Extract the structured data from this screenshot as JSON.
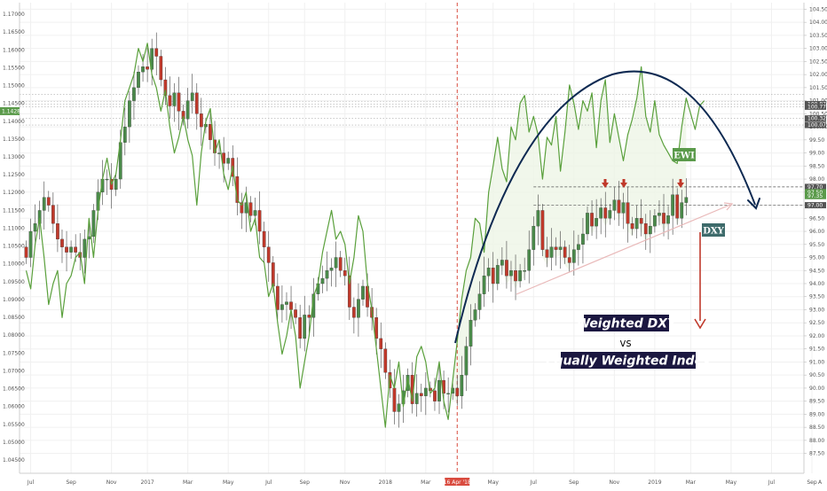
{
  "chart_data": {
    "type": "line",
    "title": "",
    "xlabel": "",
    "ylabel": "",
    "left_axis": {
      "ticks": [
        "1.04500",
        "1.05000",
        "1.05500",
        "1.06000",
        "1.06500",
        "1.07000",
        "1.07500",
        "1.08000",
        "1.08500",
        "1.09000",
        "1.09500",
        "1.10000",
        "1.10500",
        "1.11000",
        "1.11500",
        "1.12000",
        "1.12500",
        "1.13000",
        "1.13500",
        "1.14000",
        "1.14500",
        "1.15000",
        "1.15500",
        "1.16000",
        "1.16500",
        "1.17000"
      ],
      "ylim": [
        1.045,
        1.1725
      ],
      "current_label": "1.14282",
      "current_value": 1.14282,
      "reference_levels": [
        1.1455,
        1.1475
      ]
    },
    "right_axis": {
      "ticks": [
        "87.50",
        "88.00",
        "88.50",
        "89.00",
        "89.50",
        "90.00",
        "90.50",
        "91.00",
        "91.50",
        "92.00",
        "92.50",
        "93.00",
        "93.50",
        "94.00",
        "94.50",
        "95.00",
        "95.50",
        "96.00",
        "96.50",
        "97.00",
        "97.50",
        "98.00",
        "98.50",
        "99.00",
        "99.50",
        "100.00",
        "100.50",
        "101.00",
        "101.50",
        "102.00",
        "102.50",
        "103.00",
        "103.50",
        "104.00",
        "104.50"
      ],
      "ylim": [
        87.25,
        104.65
      ],
      "price_labels": [
        {
          "text": "100.87",
          "value": 100.87,
          "color": "#555555"
        },
        {
          "text": "100.77",
          "value": 100.77,
          "color": "#555555"
        },
        {
          "text": "100.32",
          "value": 100.32,
          "color": "#555555"
        },
        {
          "text": "100.07",
          "value": 100.07,
          "color": "#555555"
        },
        {
          "text": "97.70",
          "value": 97.7,
          "color": "#555555"
        },
        {
          "text": "97.50",
          "value": 97.5,
          "color": "#5a9a4a"
        },
        {
          "text": "97.35",
          "value": 97.35,
          "color": "#5a9a4a"
        },
        {
          "text": "97.00",
          "value": 97.0,
          "color": "#555555"
        }
      ]
    },
    "x_axis": {
      "labels": [
        {
          "text": "Jul",
          "week": 1
        },
        {
          "text": "Sep",
          "week": 10
        },
        {
          "text": "Nov",
          "week": 19
        },
        {
          "text": "2017",
          "week": 27
        },
        {
          "text": "Mar",
          "week": 36
        },
        {
          "text": "May",
          "week": 45
        },
        {
          "text": "Jul",
          "week": 54
        },
        {
          "text": "Sep",
          "week": 62
        },
        {
          "text": "Nov",
          "week": 71
        },
        {
          "text": "2018",
          "week": 80
        },
        {
          "text": "Mar",
          "week": 89
        },
        {
          "text": "May",
          "week": 104
        },
        {
          "text": "Jul",
          "week": 113
        },
        {
          "text": "Sep",
          "week": 122
        },
        {
          "text": "Nov",
          "week": 131
        },
        {
          "text": "2019",
          "week": 140
        },
        {
          "text": "Mar",
          "week": 148
        },
        {
          "text": "May",
          "week": 157
        },
        {
          "text": "Jul",
          "week": 166
        },
        {
          "text": "Sep",
          "week": 175
        }
      ],
      "marker_label": "16 Apr '18",
      "marker_week": 96,
      "end_mark": "A"
    },
    "dxy_weekly_close": [
      95.0,
      96.0,
      96.3,
      96.8,
      97.3,
      97.0,
      96.3,
      95.7,
      95.4,
      95.2,
      95.4,
      95.2,
      95.0,
      95.7,
      95.8,
      96.8,
      97.5,
      98.0,
      98.0,
      97.6,
      98.0,
      99.4,
      100.0,
      101.0,
      101.5,
      102.1,
      102.3,
      102.2,
      103.0,
      102.7,
      101.8,
      101.2,
      100.8,
      101.3,
      100.6,
      100.3,
      101.0,
      101.3,
      100.5,
      100.0,
      100.1,
      99.5,
      99.0,
      99.0,
      98.6,
      98.8,
      98.1,
      97.1,
      96.7,
      97.1,
      96.6,
      96.8,
      96.0,
      95.4,
      94.8,
      93.9,
      93.0,
      93.2,
      93.3,
      93.0,
      92.7,
      91.9,
      92.8,
      92.7,
      93.6,
      94.0,
      94.2,
      94.5,
      94.6,
      95.0,
      94.5,
      94.3,
      93.1,
      92.7,
      93.4,
      93.9,
      93.1,
      92.7,
      91.9,
      91.5,
      90.6,
      90.0,
      89.1,
      89.4,
      89.9,
      90.5,
      89.4,
      89.8,
      89.7,
      90.0,
      89.9,
      89.5,
      90.3,
      89.8,
      89.8,
      90.0,
      89.7,
      90.5,
      91.6,
      92.6,
      93.0,
      93.6,
      94.3,
      94.6,
      94.0,
      94.7,
      94.9,
      94.3,
      94.5,
      94.1,
      94.5,
      94.5,
      95.3,
      96.2,
      96.8,
      95.3,
      95.0,
      95.4,
      95.3,
      95.4,
      95.0,
      94.8,
      95.3,
      95.5,
      95.9,
      96.7,
      96.2,
      96.5,
      96.9,
      96.5,
      96.8,
      97.2,
      96.7,
      97.1,
      96.3,
      96.1,
      96.5,
      96.3,
      95.9,
      96.2,
      96.6,
      96.7,
      96.3,
      96.6,
      97.4,
      96.5,
      97.1,
      97.3
    ],
    "ewi_weekly": [
      94.5,
      93.8,
      95.5,
      96.5,
      95.0,
      93.2,
      94.0,
      94.5,
      92.7,
      94.0,
      94.3,
      95.0,
      95.2,
      94.0,
      96.5,
      95.0,
      96.8,
      98.0,
      98.8,
      97.8,
      98.2,
      99.5,
      101.0,
      101.5,
      102.0,
      103.0,
      102.5,
      103.2,
      102.0,
      101.5,
      100.6,
      101.4,
      100.0,
      99.0,
      99.6,
      100.4,
      99.5,
      98.9,
      97.0,
      99.0,
      100.2,
      100.7,
      99.0,
      99.5,
      98.2,
      97.6,
      98.5,
      97.2,
      97.0,
      97.5,
      96.0,
      96.5,
      95.0,
      94.8,
      93.5,
      94.0,
      92.5,
      91.3,
      92.0,
      93.0,
      92.0,
      90.0,
      91.0,
      92.0,
      93.5,
      94.0,
      95.2,
      96.0,
      96.8,
      95.7,
      96.0,
      95.5,
      94.0,
      95.0,
      96.6,
      96.0,
      94.0,
      93.0,
      91.5,
      90.0,
      88.5,
      90.5,
      90.0,
      91.0,
      89.3,
      90.4,
      89.5,
      91.2,
      91.6,
      91.0,
      89.8,
      90.0,
      91.0,
      89.5,
      88.8,
      90.3,
      91.8,
      93.4,
      94.5,
      95.0,
      96.5,
      96.3,
      95.2,
      97.5,
      98.5,
      99.6,
      98.4,
      97.9,
      100.0,
      99.5,
      100.9,
      101.2,
      99.8,
      100.4,
      99.7,
      98.0,
      99.6,
      99.3,
      100.4,
      98.3,
      99.8,
      101.6,
      100.9,
      99.9,
      101.0,
      100.6,
      101.3,
      99.2,
      101.0,
      101.8,
      99.4,
      100.5,
      99.6,
      98.7,
      99.7,
      100.3,
      101.1,
      102.3,
      100.4,
      99.8,
      101.0,
      99.7,
      99.3,
      99.0,
      98.7,
      98.6,
      100.0,
      101.1,
      100.5,
      99.9,
      100.8,
      101.0
    ],
    "annotations": {
      "title_line1": "Weighted DXY",
      "vs": "vs",
      "title_line2": "Equally Weighted Index",
      "ewi_tag": "EWI",
      "dxy_tag": "DXY"
    },
    "colors": {
      "ewi_line": "#5aa03c",
      "bull": "#4a8a4a",
      "bear": "#c0392b",
      "arc": "#0e2a52",
      "red_arrow": "#c0392b",
      "marker_line": "#d94b3f",
      "annotation_bg": "#1b1740",
      "ewi_tag_bg": "#5a9a4a",
      "dxy_tag_bg": "#3e6b6b",
      "fill": "#eef5e6"
    }
  }
}
